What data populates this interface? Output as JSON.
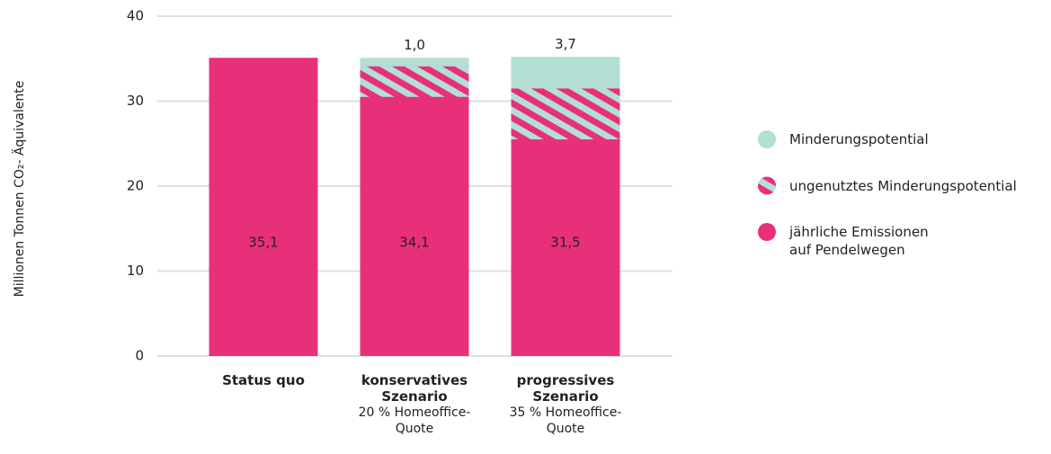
{
  "chart_data": {
    "type": "stacked_bar",
    "y_label": "Millionen Tonnen CO₂- Äquivalente",
    "categories": [
      "Status quo",
      "konservatives Szenario",
      "progressives Szenario"
    ],
    "category_notes": [
      null,
      "20 % Homeoffice-Quote",
      "35 % Homeoffice-Quote"
    ],
    "series": [
      {
        "name": "Minderungspotential",
        "color": "#b3dfd4",
        "values": [
          null,
          1.0,
          3.7
        ],
        "value_labels": [
          null,
          "1,0",
          "3,7"
        ]
      },
      {
        "name": "ungenutztes Minderungspotential",
        "color": "#e8307a",
        "values": [
          null,
          3.6,
          6.0
        ]
      },
      {
        "name": "jährliche Emissionen auf Pendelwegen",
        "color": "#e8307a",
        "values": [
          35.1,
          34.1,
          31.5
        ],
        "value_labels": [
          "35,1",
          "34,1",
          "31,5"
        ]
      }
    ],
    "ylim": [
      0,
      40
    ],
    "yticks": [
      0,
      10,
      20,
      30,
      40
    ],
    "grid": true,
    "legend": "right"
  }
}
